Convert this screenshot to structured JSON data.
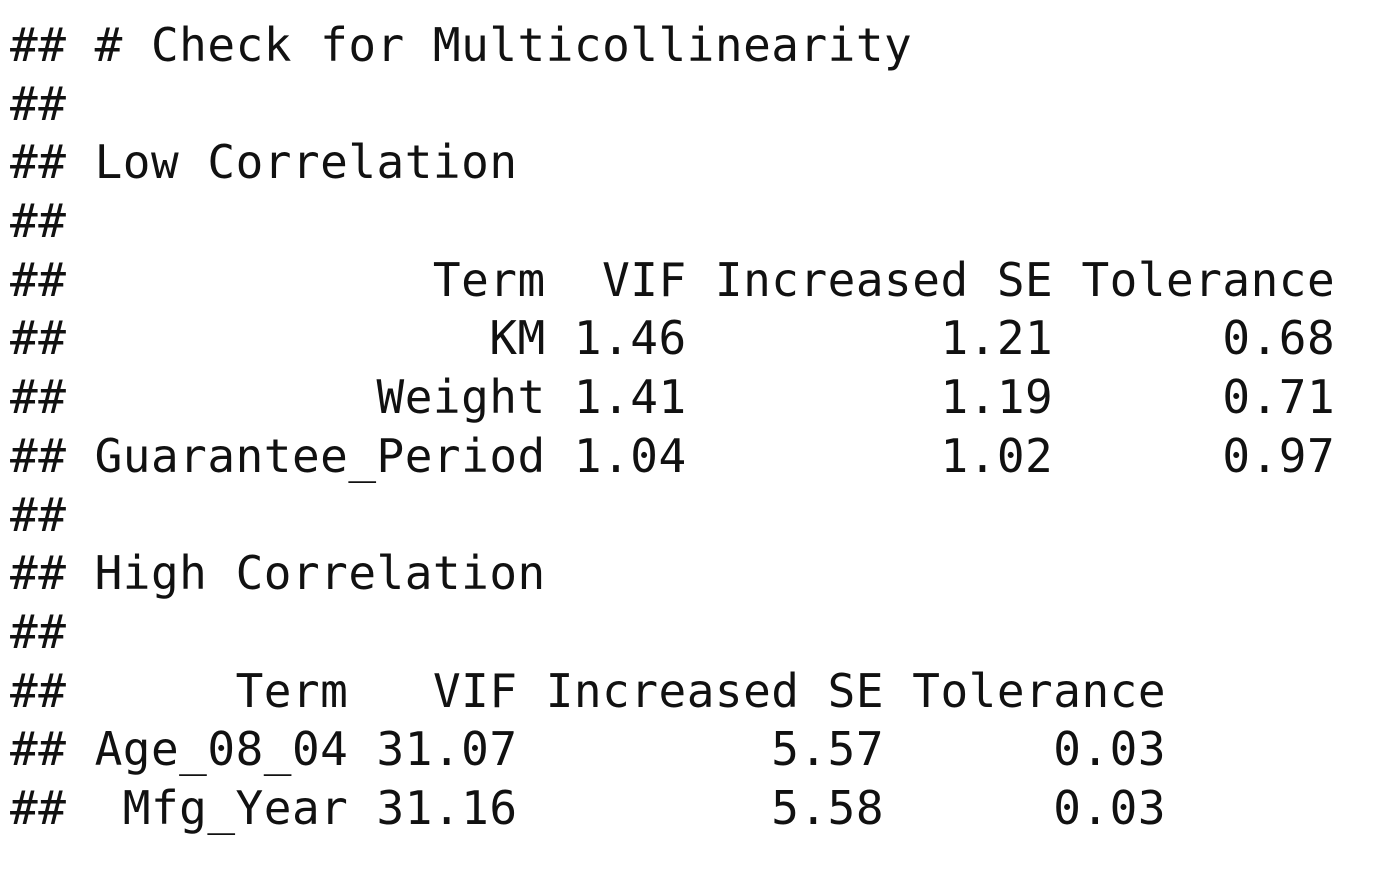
{
  "prefix": "##",
  "title": "# Check for Multicollinearity",
  "low": {
    "heading": "Low Correlation",
    "columns": [
      "Term",
      "VIF",
      "Increased SE",
      "Tolerance"
    ],
    "rows": [
      [
        "KM",
        "1.46",
        "1.21",
        "0.68"
      ],
      [
        "Weight",
        "1.41",
        "1.19",
        "0.71"
      ],
      [
        "Guarantee_Period",
        "1.04",
        "1.02",
        "0.97"
      ]
    ]
  },
  "high": {
    "heading": "High Correlation",
    "columns": [
      "Term",
      "VIF",
      "Increased SE",
      "Tolerance"
    ],
    "rows": [
      [
        "Age_08_04",
        "31.07",
        "5.57",
        "0.03"
      ],
      [
        "Mfg_Year",
        "31.16",
        "5.58",
        "0.03"
      ]
    ]
  }
}
